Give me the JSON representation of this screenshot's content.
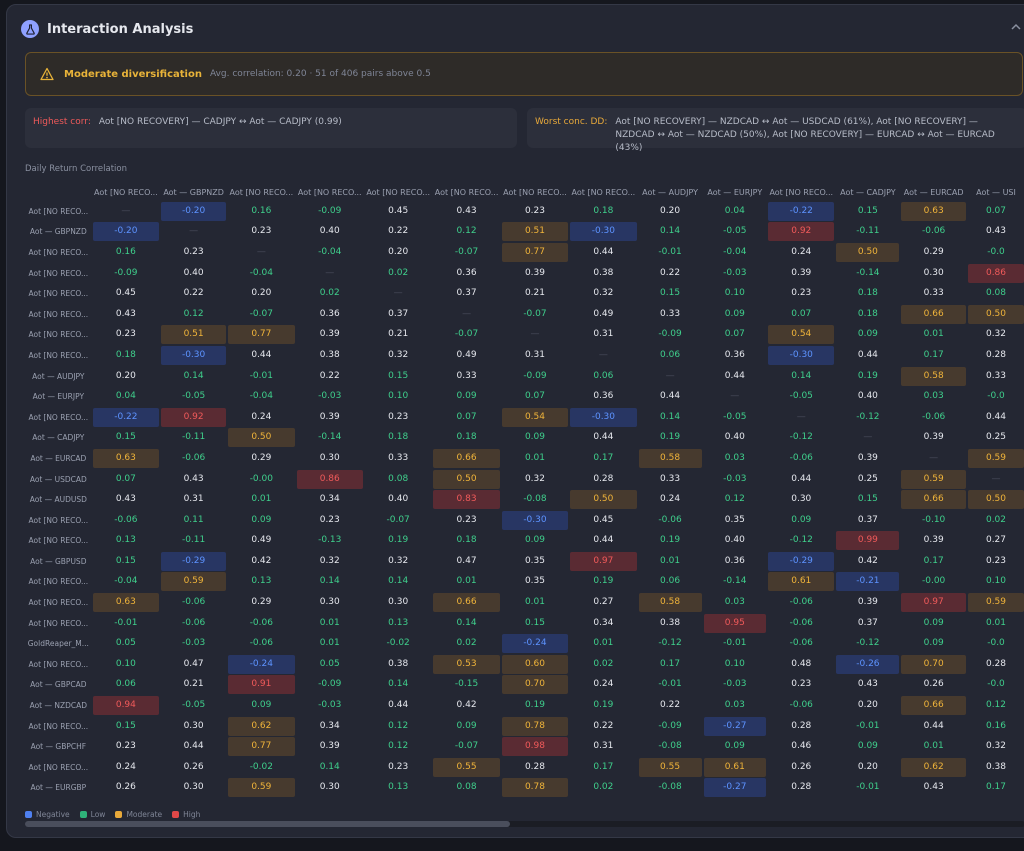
{
  "header": {
    "title": "Interaction Analysis"
  },
  "alert": {
    "title": "Moderate diversification",
    "text": "Avg. correlation: 0.20 · 51 of 406 pairs above 0.5"
  },
  "highest": {
    "label": "Highest corr:",
    "text": "Aot [NO RECOVERY] — CADJPY ↔ Aot — CADJPY (0.99)"
  },
  "worst": {
    "label": "Worst conc. DD:",
    "text": "Aot [NO RECOVERY] — NZDCAD ↔ Aot — USDCAD (61%), Aot [NO RECOVERY] — NZDCAD ↔ Aot — NZDCAD (50%), Aot [NO RECOVERY] — EURCAD ↔ Aot — EURCAD (43%)"
  },
  "section_title": "Daily Return Correlation",
  "columns": [
    "Aot [NO RECO...",
    "Aot — GBPNZD",
    "Aot [NO RECO...",
    "Aot [NO RECO...",
    "Aot [NO RECO...",
    "Aot [NO RECO...",
    "Aot [NO RECO...",
    "Aot [NO RECO...",
    "Aot — AUDJPY",
    "Aot — EURJPY",
    "Aot [NO RECO...",
    "Aot — CADJPY",
    "Aot — EURCAD",
    "Aot — USI"
  ],
  "rows": [
    {
      "label": "Aot [NO RECO...",
      "cells": [
        "—",
        "-0.20",
        "0.16",
        "-0.09",
        "0.45",
        "0.43",
        "0.23",
        "0.18",
        "0.20",
        "0.04",
        "-0.22",
        "0.15",
        "0.63",
        "0.07"
      ]
    },
    {
      "label": "Aot — GBPNZD",
      "cells": [
        "-0.20",
        "—",
        "0.23",
        "0.40",
        "0.22",
        "0.12",
        "0.51",
        "-0.30",
        "0.14",
        "-0.05",
        "0.92",
        "-0.11",
        "-0.06",
        "0.43"
      ]
    },
    {
      "label": "Aot [NO RECO...",
      "cells": [
        "0.16",
        "0.23",
        "—",
        "-0.04",
        "0.20",
        "-0.07",
        "0.77",
        "0.44",
        "-0.01",
        "-0.04",
        "0.24",
        "0.50",
        "0.29",
        "-0.0"
      ]
    },
    {
      "label": "Aot [NO RECO...",
      "cells": [
        "-0.09",
        "0.40",
        "-0.04",
        "—",
        "0.02",
        "0.36",
        "0.39",
        "0.38",
        "0.22",
        "-0.03",
        "0.39",
        "-0.14",
        "0.30",
        "0.86"
      ]
    },
    {
      "label": "Aot [NO RECO...",
      "cells": [
        "0.45",
        "0.22",
        "0.20",
        "0.02",
        "—",
        "0.37",
        "0.21",
        "0.32",
        "0.15",
        "0.10",
        "0.23",
        "0.18",
        "0.33",
        "0.08"
      ]
    },
    {
      "label": "Aot [NO RECO...",
      "cells": [
        "0.43",
        "0.12",
        "-0.07",
        "0.36",
        "0.37",
        "—",
        "-0.07",
        "0.49",
        "0.33",
        "0.09",
        "0.07",
        "0.18",
        "0.66",
        "0.50"
      ]
    },
    {
      "label": "Aot [NO RECO...",
      "cells": [
        "0.23",
        "0.51",
        "0.77",
        "0.39",
        "0.21",
        "-0.07",
        "—",
        "0.31",
        "-0.09",
        "0.07",
        "0.54",
        "0.09",
        "0.01",
        "0.32"
      ]
    },
    {
      "label": "Aot [NO RECO...",
      "cells": [
        "0.18",
        "-0.30",
        "0.44",
        "0.38",
        "0.32",
        "0.49",
        "0.31",
        "—",
        "0.06",
        "0.36",
        "-0.30",
        "0.44",
        "0.17",
        "0.28"
      ]
    },
    {
      "label": "Aot — AUDJPY",
      "cells": [
        "0.20",
        "0.14",
        "-0.01",
        "0.22",
        "0.15",
        "0.33",
        "-0.09",
        "0.06",
        "—",
        "0.44",
        "0.14",
        "0.19",
        "0.58",
        "0.33"
      ]
    },
    {
      "label": "Aot — EURJPY",
      "cells": [
        "0.04",
        "-0.05",
        "-0.04",
        "-0.03",
        "0.10",
        "0.09",
        "0.07",
        "0.36",
        "0.44",
        "—",
        "-0.05",
        "0.40",
        "0.03",
        "-0.0"
      ]
    },
    {
      "label": "Aot [NO RECO...",
      "cells": [
        "-0.22",
        "0.92",
        "0.24",
        "0.39",
        "0.23",
        "0.07",
        "0.54",
        "-0.30",
        "0.14",
        "-0.05",
        "—",
        "-0.12",
        "-0.06",
        "0.44"
      ]
    },
    {
      "label": "Aot — CADJPY",
      "cells": [
        "0.15",
        "-0.11",
        "0.50",
        "-0.14",
        "0.18",
        "0.18",
        "0.09",
        "0.44",
        "0.19",
        "0.40",
        "-0.12",
        "—",
        "0.39",
        "0.25"
      ]
    },
    {
      "label": "Aot — EURCAD",
      "cells": [
        "0.63",
        "-0.06",
        "0.29",
        "0.30",
        "0.33",
        "0.66",
        "0.01",
        "0.17",
        "0.58",
        "0.03",
        "-0.06",
        "0.39",
        "—",
        "0.59"
      ]
    },
    {
      "label": "Aot — USDCAD",
      "cells": [
        "0.07",
        "0.43",
        "-0.00",
        "0.86",
        "0.08",
        "0.50",
        "0.32",
        "0.28",
        "0.33",
        "-0.03",
        "0.44",
        "0.25",
        "0.59",
        "—"
      ]
    },
    {
      "label": "Aot — AUDUSD",
      "cells": [
        "0.43",
        "0.31",
        "0.01",
        "0.34",
        "0.40",
        "0.83",
        "-0.08",
        "0.50",
        "0.24",
        "0.12",
        "0.30",
        "0.15",
        "0.66",
        "0.50"
      ]
    },
    {
      "label": "Aot [NO RECO...",
      "cells": [
        "-0.06",
        "0.11",
        "0.09",
        "0.23",
        "-0.07",
        "0.23",
        "-0.30",
        "0.45",
        "-0.06",
        "0.35",
        "0.09",
        "0.37",
        "-0.10",
        "0.02"
      ]
    },
    {
      "label": "Aot [NO RECO...",
      "cells": [
        "0.13",
        "-0.11",
        "0.49",
        "-0.13",
        "0.19",
        "0.18",
        "0.09",
        "0.44",
        "0.19",
        "0.40",
        "-0.12",
        "0.99",
        "0.39",
        "0.27"
      ]
    },
    {
      "label": "Aot — GBPUSD",
      "cells": [
        "0.15",
        "-0.29",
        "0.42",
        "0.32",
        "0.32",
        "0.47",
        "0.35",
        "0.97",
        "0.01",
        "0.36",
        "-0.29",
        "0.42",
        "0.17",
        "0.23"
      ]
    },
    {
      "label": "Aot [NO RECO...",
      "cells": [
        "-0.04",
        "0.59",
        "0.13",
        "0.14",
        "0.14",
        "0.01",
        "0.35",
        "0.19",
        "0.06",
        "-0.14",
        "0.61",
        "-0.21",
        "-0.00",
        "0.10"
      ]
    },
    {
      "label": "Aot [NO RECO...",
      "cells": [
        "0.63",
        "-0.06",
        "0.29",
        "0.30",
        "0.30",
        "0.66",
        "0.01",
        "0.27",
        "0.58",
        "0.03",
        "-0.06",
        "0.39",
        "0.97",
        "0.59"
      ]
    },
    {
      "label": "Aot [NO RECO...",
      "cells": [
        "-0.01",
        "-0.06",
        "-0.06",
        "0.01",
        "0.13",
        "0.14",
        "0.15",
        "0.34",
        "0.38",
        "0.95",
        "-0.06",
        "0.37",
        "0.09",
        "0.01"
      ]
    },
    {
      "label": "GoldReaper_M...",
      "cells": [
        "0.05",
        "-0.03",
        "-0.06",
        "0.01",
        "-0.02",
        "0.02",
        "-0.24",
        "0.01",
        "-0.12",
        "-0.01",
        "-0.06",
        "-0.12",
        "0.09",
        "-0.0"
      ]
    },
    {
      "label": "Aot [NO RECO...",
      "cells": [
        "0.10",
        "0.47",
        "-0.24",
        "0.05",
        "0.38",
        "0.53",
        "0.60",
        "0.02",
        "0.17",
        "0.10",
        "0.48",
        "-0.26",
        "0.70",
        "0.28"
      ]
    },
    {
      "label": "Aot — GBPCAD",
      "cells": [
        "0.06",
        "0.21",
        "0.91",
        "-0.09",
        "0.14",
        "-0.15",
        "0.70",
        "0.24",
        "-0.01",
        "-0.03",
        "0.23",
        "0.43",
        "0.26",
        "-0.0"
      ]
    },
    {
      "label": "Aot — NZDCAD",
      "cells": [
        "0.94",
        "-0.05",
        "0.09",
        "-0.03",
        "0.44",
        "0.42",
        "0.19",
        "0.19",
        "0.22",
        "0.03",
        "-0.06",
        "0.20",
        "0.66",
        "0.12"
      ]
    },
    {
      "label": "Aot [NO RECO...",
      "cells": [
        "0.15",
        "0.30",
        "0.62",
        "0.34",
        "0.12",
        "0.09",
        "0.78",
        "0.22",
        "-0.09",
        "-0.27",
        "0.28",
        "-0.01",
        "0.44",
        "0.16"
      ]
    },
    {
      "label": "Aot — GBPCHF",
      "cells": [
        "0.23",
        "0.44",
        "0.77",
        "0.39",
        "0.12",
        "-0.07",
        "0.98",
        "0.31",
        "-0.08",
        "0.09",
        "0.46",
        "0.09",
        "0.01",
        "0.32"
      ]
    },
    {
      "label": "Aot [NO RECO...",
      "cells": [
        "0.24",
        "0.26",
        "-0.02",
        "0.14",
        "0.23",
        "0.55",
        "0.28",
        "0.17",
        "0.55",
        "0.61",
        "0.26",
        "0.20",
        "0.62",
        "0.38"
      ]
    },
    {
      "label": "Aot — EURGBP",
      "cells": [
        "0.26",
        "0.30",
        "0.59",
        "0.30",
        "0.13",
        "0.08",
        "0.78",
        "0.02",
        "-0.08",
        "-0.27",
        "0.28",
        "-0.01",
        "0.43",
        "0.17"
      ]
    }
  ],
  "legend": {
    "items": [
      {
        "label": "Negative",
        "color": "#4f80f0"
      },
      {
        "label": "Low",
        "color": "#2fb37a"
      },
      {
        "label": "Moderate",
        "color": "#e8a93a"
      },
      {
        "label": "High",
        "color": "#e04848"
      }
    ]
  },
  "colors": {
    "negative": "#5d93ff",
    "low": "#3fcf8c",
    "moderate": "#f0b43a",
    "high": "#f05a5a",
    "accent": "#8fa1ff"
  }
}
